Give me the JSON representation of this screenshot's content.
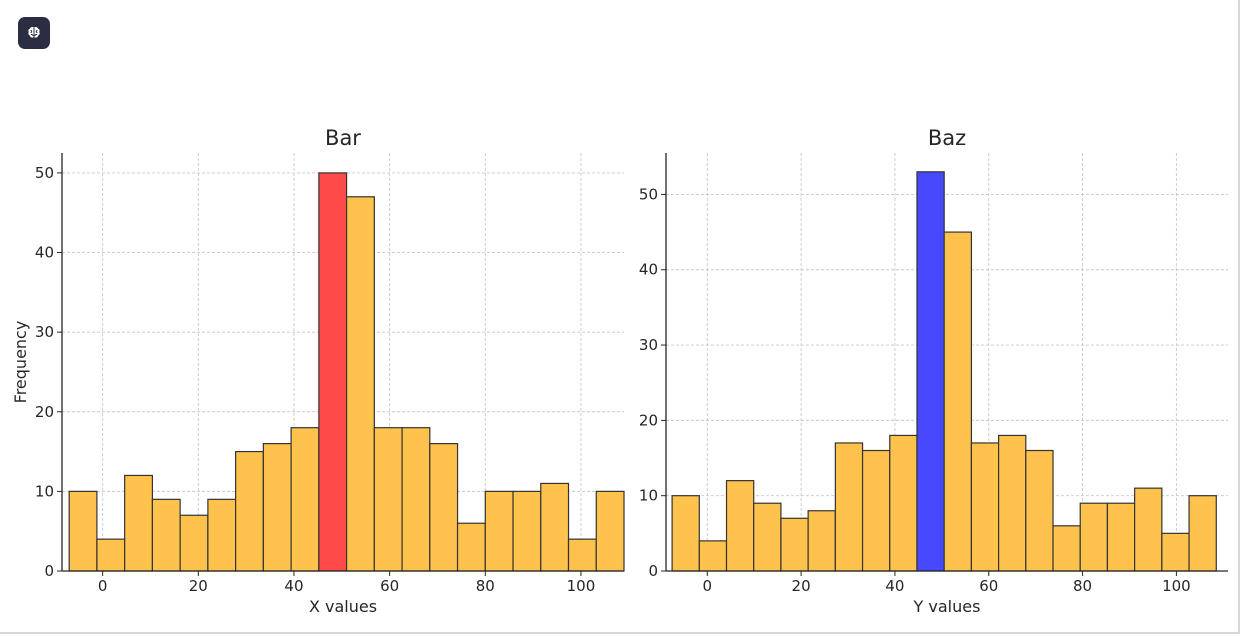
{
  "app": {
    "badge_icon": "brain-icon"
  },
  "chart_data": [
    {
      "type": "bar",
      "title": "Bar",
      "xlabel": "X values",
      "ylabel": "Frequency",
      "bin_start": -7,
      "bin_width": 5.8,
      "values": [
        10,
        4,
        12,
        9,
        7,
        9,
        15,
        16,
        18,
        50,
        47,
        18,
        18,
        16,
        6,
        10,
        10,
        11,
        4,
        10
      ],
      "highlight_index": 9,
      "bar_color": "#ffc34d",
      "highlight_color": "#ff4a4a",
      "edge_color": "#333333",
      "xlim": [
        -8.5,
        109
      ],
      "ylim": [
        0,
        52.5
      ],
      "xticks": [
        0,
        20,
        40,
        60,
        80,
        100
      ],
      "yticks": [
        0,
        10,
        20,
        30,
        40,
        50
      ],
      "grid": true
    },
    {
      "type": "bar",
      "title": "Baz",
      "xlabel": "Y values",
      "ylabel": "",
      "bin_start": -7.5,
      "bin_width": 5.8,
      "values": [
        10,
        4,
        12,
        9,
        7,
        8,
        17,
        16,
        18,
        53,
        45,
        17,
        18,
        16,
        6,
        9,
        9,
        11,
        5,
        10
      ],
      "highlight_index": 9,
      "bar_color": "#ffc34d",
      "highlight_color": "#4848ff",
      "edge_color": "#333333",
      "xlim": [
        -8.8,
        111
      ],
      "ylim": [
        0,
        55.5
      ],
      "xticks": [
        0,
        20,
        40,
        60,
        80,
        100
      ],
      "yticks": [
        0,
        10,
        20,
        30,
        40,
        50
      ],
      "grid": true
    }
  ]
}
